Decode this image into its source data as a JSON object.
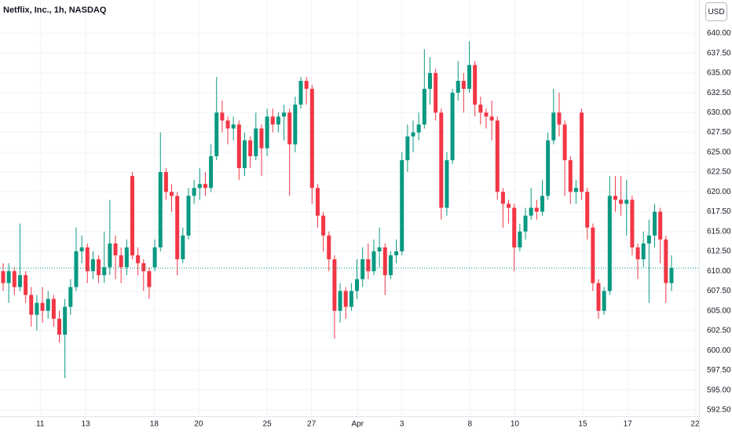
{
  "chart_data": {
    "type": "candlestick",
    "title": "Netflix, Inc., 1h, NASDAQ",
    "currency": "USD",
    "up_color": "#089981",
    "down_color": "#f23645",
    "grid": true,
    "xlim": [
      -0.56,
      123.9
    ],
    "ylim": [
      591.7,
      644.2
    ],
    "xticks": [
      {
        "value": 6.6,
        "label": "11"
      },
      {
        "value": 14.7,
        "label": "13"
      },
      {
        "value": 26.9,
        "label": "18"
      },
      {
        "value": 34.8,
        "label": "20"
      },
      {
        "value": 47.0,
        "label": "25"
      },
      {
        "value": 54.9,
        "label": "27"
      },
      {
        "value": 63.1,
        "label": "Apr"
      },
      {
        "value": 71.0,
        "label": "3"
      },
      {
        "value": 83.1,
        "label": "8"
      },
      {
        "value": 91.1,
        "label": "10"
      },
      {
        "value": 103.2,
        "label": "15"
      },
      {
        "value": 111.2,
        "label": "17"
      },
      {
        "value": 123.2,
        "label": "22"
      }
    ],
    "yticks": [
      {
        "value": 592.5,
        "label": "592.50"
      },
      {
        "value": 595,
        "label": "595.00"
      },
      {
        "value": 597.5,
        "label": "597.50"
      },
      {
        "value": 600,
        "label": "600.00"
      },
      {
        "value": 602.5,
        "label": "602.50"
      },
      {
        "value": 605,
        "label": "605.00"
      },
      {
        "value": 607.5,
        "label": "607.50"
      },
      {
        "value": 610,
        "label": "610.00"
      },
      {
        "value": 612.5,
        "label": "612.50"
      },
      {
        "value": 615,
        "label": "615.00"
      },
      {
        "value": 617.5,
        "label": "617.50"
      },
      {
        "value": 620,
        "label": "620.00"
      },
      {
        "value": 622.5,
        "label": "622.50"
      },
      {
        "value": 625,
        "label": "625.00"
      },
      {
        "value": 627.5,
        "label": "627.50"
      },
      {
        "value": 630,
        "label": "630.00"
      },
      {
        "value": 632.5,
        "label": "632.50"
      },
      {
        "value": 635,
        "label": "635.00"
      },
      {
        "value": 637.5,
        "label": "637.50"
      },
      {
        "value": 640,
        "label": "640.00"
      }
    ],
    "open": [
      610,
      608.5,
      610,
      608,
      609.5,
      607,
      604.5,
      606,
      605,
      606.5,
      604,
      602,
      605.5,
      608,
      612.5,
      613,
      610,
      611.5,
      609.5,
      610.5,
      613.5,
      612,
      610.5,
      622,
      612,
      611,
      610,
      610.5,
      613,
      622.5,
      620,
      619.5,
      611.5,
      614.5,
      619.5,
      620.5,
      621,
      620.5,
      624.5,
      630,
      629,
      628,
      628.5,
      623,
      626.5,
      624.5,
      628,
      625.5,
      629.5,
      628.5,
      629.5,
      630,
      626,
      631,
      634,
      633,
      620.5,
      617,
      614.5,
      611.5,
      605,
      607.5,
      605.5,
      607.5,
      609,
      611.5,
      610,
      612.5,
      613,
      609.5,
      612,
      612.5,
      624,
      627,
      627.5,
      628.5,
      633,
      635,
      630,
      618,
      624,
      632.5,
      634,
      633,
      636,
      631,
      630,
      629.5,
      629,
      620,
      618.5,
      618,
      613,
      615,
      617,
      618,
      617.5,
      619.5,
      626.5,
      630,
      628.5,
      624,
      620,
      630,
      620,
      615.5,
      608.5,
      605,
      607.5,
      619.5,
      619,
      618.5,
      619,
      613,
      611.5,
      613.5,
      614.5,
      617.5,
      614,
      608.5
    ],
    "high": [
      611,
      611,
      610.5,
      616,
      610,
      608,
      607,
      608,
      607.5,
      607,
      605,
      606.5,
      609,
      615.5,
      614.5,
      613.5,
      612.5,
      612,
      615,
      619,
      614.5,
      613,
      614,
      622.5,
      613,
      611.5,
      610.5,
      614,
      627.5,
      623,
      621,
      620,
      615.5,
      620.5,
      621.5,
      623,
      622.5,
      626,
      634.5,
      631.5,
      629.5,
      629.5,
      629,
      627.5,
      627,
      630,
      628.5,
      630.5,
      630.5,
      630,
      631,
      630.5,
      632,
      634.5,
      634.5,
      633.5,
      621,
      617.5,
      615,
      612,
      608.5,
      608,
      608.5,
      611.5,
      613,
      613.5,
      614,
      615.5,
      613.5,
      612.5,
      614,
      625,
      628.5,
      629,
      630,
      638,
      637,
      635.5,
      630.5,
      625,
      633,
      636.5,
      635,
      639,
      636.5,
      632,
      630.5,
      631.5,
      629.5,
      620.5,
      619,
      618.5,
      616,
      618,
      620.5,
      619,
      621.5,
      627.5,
      633,
      632.5,
      629,
      624.5,
      621.5,
      630.5,
      620.5,
      616,
      609,
      608,
      622,
      622,
      622,
      621.5,
      619.5,
      613.5,
      615,
      616.5,
      618.5,
      618,
      614.5,
      612
    ],
    "low": [
      607.5,
      606,
      607,
      607.5,
      606,
      603,
      602.5,
      603.5,
      604,
      603,
      601,
      596.5,
      604.5,
      607.5,
      611,
      608.5,
      609,
      608.5,
      608.5,
      609.5,
      609,
      608.5,
      609.5,
      611.5,
      609.5,
      607.5,
      606.5,
      610,
      612.5,
      619,
      617.5,
      609.5,
      611,
      614,
      618.5,
      619,
      619.5,
      620,
      624,
      627.5,
      626,
      626.5,
      621.5,
      622,
      623,
      624,
      622,
      624.5,
      627.5,
      627.5,
      626.5,
      619.5,
      625,
      630.5,
      631,
      618.5,
      615.5,
      612.5,
      610,
      601.5,
      603.5,
      604,
      605,
      606.5,
      608,
      609,
      609.5,
      610.5,
      607,
      609,
      611,
      612,
      622.5,
      625,
      626.5,
      628,
      631,
      629,
      616.5,
      617,
      623.5,
      631.5,
      630,
      632.5,
      629.5,
      628.5,
      628,
      626.5,
      619,
      615.5,
      616,
      610,
      612.5,
      614,
      616.5,
      616.5,
      617,
      619,
      626,
      627,
      619.5,
      618.5,
      618.5,
      619,
      614,
      607.5,
      604,
      604.5,
      607,
      617.5,
      617,
      614.5,
      612,
      609,
      610.5,
      606,
      613,
      611,
      606,
      607.5
    ],
    "close": [
      608.5,
      610,
      608,
      609.5,
      607,
      604.5,
      606,
      605,
      606.5,
      604,
      602,
      605.5,
      608,
      612.5,
      613,
      610,
      611.5,
      609.5,
      610.5,
      613.5,
      612,
      610.5,
      613,
      612,
      611,
      610,
      608,
      613,
      622.5,
      620,
      619.5,
      611.5,
      614.5,
      619.5,
      620.5,
      621,
      620.5,
      624.5,
      630,
      629,
      628,
      628.5,
      623,
      626.5,
      624.5,
      628,
      625.5,
      629.5,
      628.5,
      629.5,
      630,
      626,
      631,
      634,
      633,
      620.5,
      617,
      614.5,
      611.5,
      605,
      607.5,
      605.5,
      607.5,
      609,
      611.5,
      610,
      612.5,
      613,
      609.5,
      612,
      612.5,
      624,
      627,
      627.5,
      628.5,
      633,
      635,
      630,
      618,
      624,
      632.5,
      634,
      633,
      636,
      631,
      630,
      629.5,
      629,
      620,
      618.5,
      618,
      613,
      615,
      617,
      618,
      617.5,
      619.5,
      626.5,
      630,
      628.5,
      624,
      620,
      620.5,
      620,
      615.5,
      608.5,
      605,
      607.5,
      619.5,
      619,
      618.5,
      619,
      613,
      611.5,
      613.5,
      614.5,
      617.5,
      614,
      608.5,
      610.4
    ]
  }
}
